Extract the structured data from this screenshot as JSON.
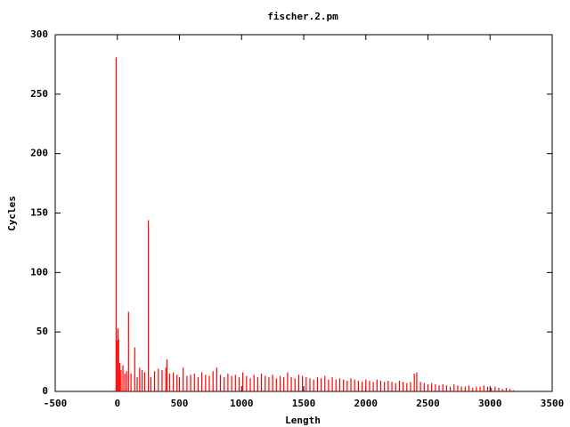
{
  "chart_data": {
    "type": "impulse",
    "title": "fischer.2.pm",
    "x_label": "Length",
    "y_label": "Cycles",
    "color": "#ff0000",
    "xlim": [
      -500,
      3500
    ],
    "xticks": [
      -500,
      0,
      500,
      1000,
      1500,
      2000,
      2500,
      3000,
      3500
    ],
    "ylim": [
      0,
      300
    ],
    "yticks": [
      0,
      50,
      100,
      150,
      200,
      250,
      300
    ],
    "x": [
      -10,
      0,
      5,
      10,
      20,
      30,
      45,
      60,
      75,
      90,
      110,
      140,
      160,
      180,
      200,
      220,
      250,
      270,
      300,
      330,
      360,
      390,
      400,
      420,
      450,
      480,
      500,
      530,
      560,
      590,
      620,
      650,
      680,
      710,
      740,
      770,
      800,
      830,
      860,
      890,
      920,
      950,
      980,
      1010,
      1040,
      1070,
      1100,
      1130,
      1160,
      1190,
      1220,
      1250,
      1280,
      1310,
      1340,
      1370,
      1400,
      1430,
      1460,
      1490,
      1520,
      1550,
      1580,
      1610,
      1640,
      1670,
      1700,
      1730,
      1760,
      1790,
      1820,
      1850,
      1880,
      1910,
      1940,
      1970,
      2000,
      2030,
      2060,
      2090,
      2120,
      2150,
      2180,
      2210,
      2240,
      2270,
      2300,
      2330,
      2360,
      2390,
      2410,
      2440,
      2470,
      2500,
      2530,
      2560,
      2590,
      2620,
      2650,
      2680,
      2710,
      2740,
      2770,
      2800,
      2830,
      2860,
      2890,
      2920,
      2950,
      2980,
      3010,
      3040,
      3070,
      3100,
      3130,
      3160,
      3190
    ],
    "values": [
      281,
      43,
      53,
      44,
      24,
      18,
      22,
      15,
      17,
      67,
      15,
      37,
      12,
      20,
      18,
      16,
      144,
      12,
      17,
      19,
      18,
      20,
      27,
      15,
      16,
      14,
      12,
      20,
      13,
      14,
      15,
      12,
      16,
      14,
      13,
      17,
      20,
      14,
      12,
      15,
      13,
      14,
      12,
      16,
      13,
      11,
      14,
      12,
      15,
      13,
      12,
      14,
      11,
      13,
      12,
      16,
      12,
      11,
      14,
      13,
      12,
      11,
      10,
      12,
      11,
      13,
      10,
      12,
      10,
      11,
      10,
      9,
      11,
      10,
      9,
      8,
      10,
      9,
      8,
      10,
      9,
      8,
      9,
      8,
      7,
      9,
      8,
      7,
      8,
      15,
      16,
      8,
      7,
      6,
      7,
      6,
      5,
      6,
      5,
      4,
      6,
      5,
      4,
      4,
      5,
      3,
      4,
      4,
      5,
      4,
      3,
      4,
      3,
      2,
      3,
      2,
      1
    ]
  }
}
